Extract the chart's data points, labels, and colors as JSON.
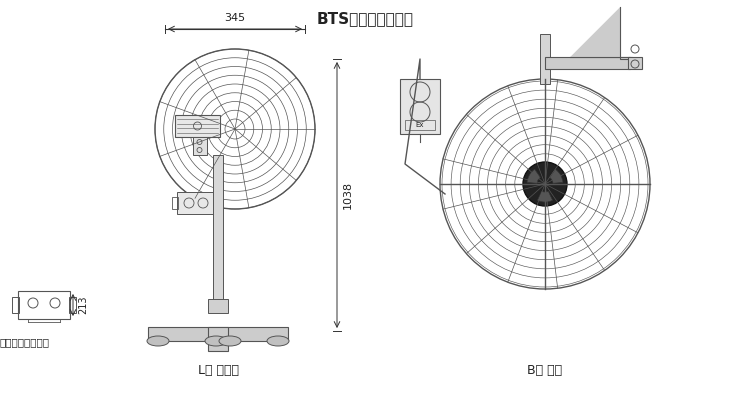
{
  "bg_color": "#ffffff",
  "line_color": "#555555",
  "dim_color": "#333333",
  "text_color": "#222222",
  "title": "BTS系列防爆摇头扇",
  "label_L": "L： 落地式",
  "label_B": "B： 壁式",
  "label_switch": "控制开关安装尺寸",
  "dim_345": "345",
  "dim_1038": "1038",
  "dim_213": "213"
}
